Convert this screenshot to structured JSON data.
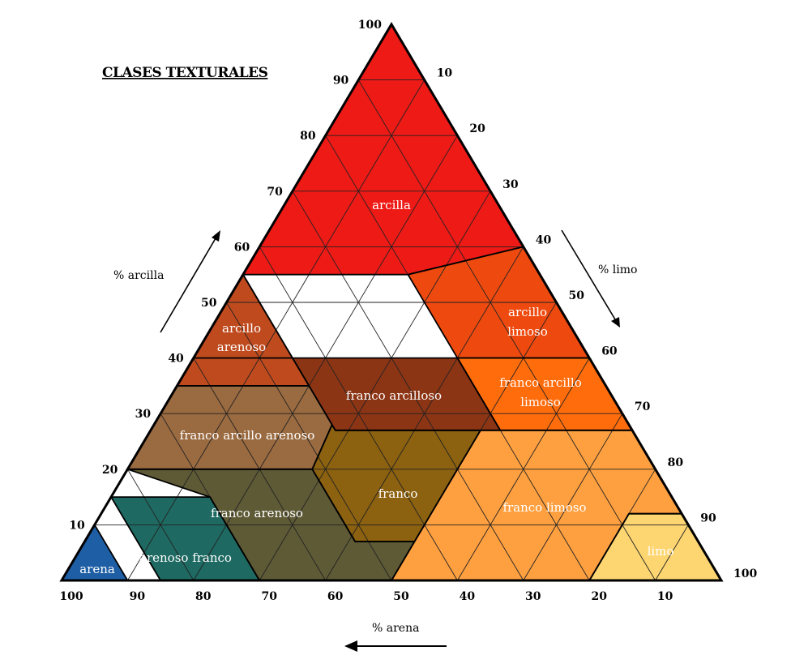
{
  "title": "CLASES TEXTURALES",
  "axes": {
    "clay": {
      "label": "% arcilla",
      "ticks": [
        "10",
        "20",
        "30",
        "40",
        "50",
        "60",
        "70",
        "80",
        "90",
        "100"
      ]
    },
    "silt": {
      "label": "% limo",
      "ticks": [
        "10",
        "20",
        "30",
        "40",
        "50",
        "60",
        "70",
        "80",
        "90",
        "100"
      ]
    },
    "sand": {
      "label": "% arena",
      "ticks": [
        "100",
        "90",
        "80",
        "70",
        "60",
        "50",
        "40",
        "30",
        "20",
        "10"
      ]
    }
  },
  "regions": [
    {
      "id": "arcilla",
      "label_lines": [
        "arcilla"
      ],
      "color": "#ee1a16"
    },
    {
      "id": "arcillo-limoso",
      "label_lines": [
        "arcillo",
        "limoso"
      ],
      "color": "#ee4a10"
    },
    {
      "id": "arcillo-arenoso",
      "label_lines": [
        "arcillo",
        "arenoso"
      ],
      "color": "#bf4a1e"
    },
    {
      "id": "franco-arcilloso",
      "label_lines": [
        "franco arcilloso"
      ],
      "color": "#8c3515"
    },
    {
      "id": "franco-arcillo-limoso",
      "label_lines": [
        "franco arcillo",
        "limoso"
      ],
      "color": "#ff6c0c"
    },
    {
      "id": "franco-arcillo-arenoso",
      "label_lines": [
        "franco arcillo arenoso"
      ],
      "color": "#9a6a40"
    },
    {
      "id": "franco",
      "label_lines": [
        "franco"
      ],
      "color": "#8c6110"
    },
    {
      "id": "franco-limoso",
      "label_lines": [
        "franco limoso"
      ],
      "color": "#ffa040"
    },
    {
      "id": "franco-arenoso",
      "label_lines": [
        "franco arenoso"
      ],
      "color": "#5e5a36"
    },
    {
      "id": "arenoso-franco",
      "label_lines": [
        "arenoso franco"
      ],
      "color": "#1e6a62"
    },
    {
      "id": "arena",
      "label_lines": [
        "arena"
      ],
      "color": "#1e5ea4"
    },
    {
      "id": "limo",
      "label_lines": [
        "limo"
      ],
      "color": "#fdd672"
    }
  ]
}
